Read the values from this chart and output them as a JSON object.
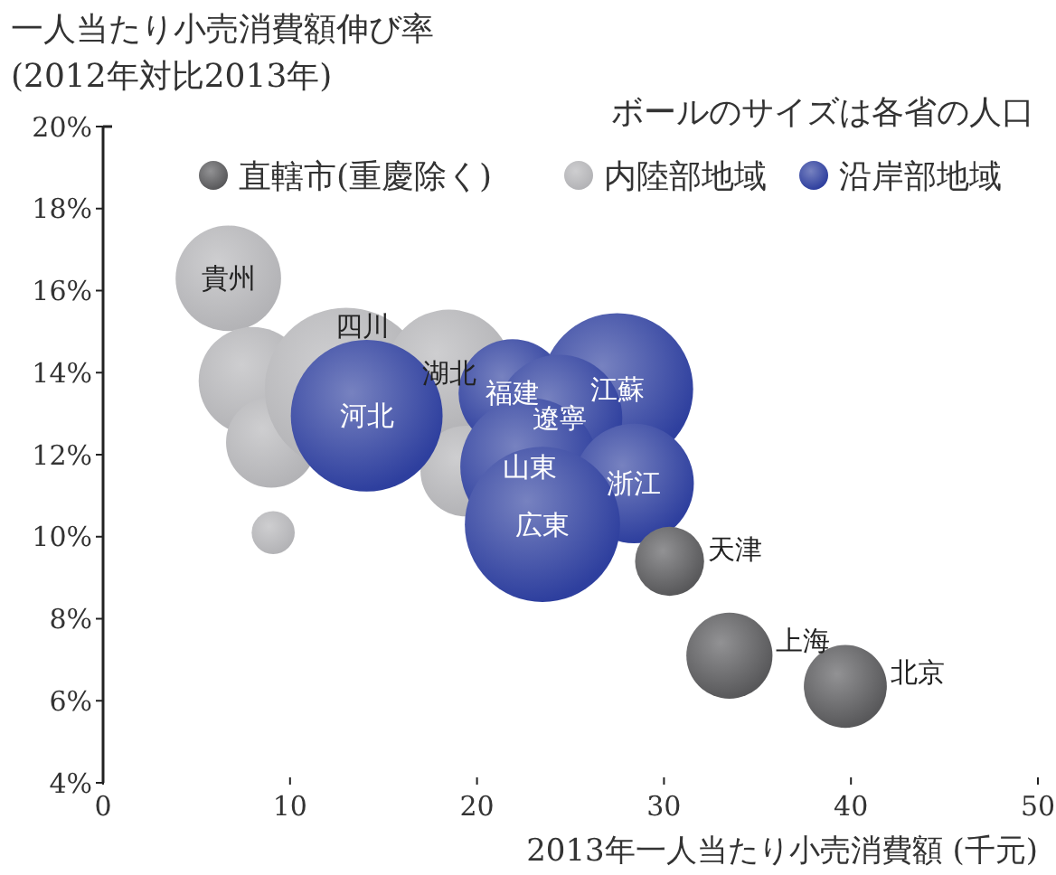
{
  "chart_data": {
    "type": "bubble",
    "ylabel": "一人当たり小売消費額伸び率\n(2012年対比2013年)",
    "xlabel": "2013年一人当たり小売消費額 (千元)",
    "xlim": [
      0,
      50
    ],
    "xticks": [
      0,
      10,
      20,
      30,
      40,
      50
    ],
    "ylim": [
      4,
      20
    ],
    "yticks": [
      {
        "value": 4,
        "label": "4%"
      },
      {
        "value": 6,
        "label": "6%"
      },
      {
        "value": 8,
        "label": "8%"
      },
      {
        "value": 10,
        "label": "10%"
      },
      {
        "value": 12,
        "label": "12%"
      },
      {
        "value": 14,
        "label": "14%"
      },
      {
        "value": 16,
        "label": "16%"
      },
      {
        "value": 18,
        "label": "18%"
      },
      {
        "value": 20,
        "label": "20%"
      }
    ],
    "grid": false,
    "legend": "top right",
    "series": [
      {
        "name": "内陸部地域",
        "color": "#b3b3b6",
        "x": [
          6.7,
          8.0,
          9.0,
          9.1,
          13.0,
          18.5,
          19.4
        ],
        "values": [
          16.3,
          13.8,
          12.3,
          10.1,
          13.6,
          14.0,
          11.6
        ],
        "sizes": [
          0.42,
          0.44,
          0.31,
          0.07,
          1,
          0.6,
          0.31
        ]
      },
      {
        "name": "沿岸部地域",
        "color": "#2e3f9e",
        "x": [
          14.1,
          21.9,
          27.5,
          24.4,
          22.8,
          28.4,
          23.5
        ],
        "values": [
          12.95,
          13.5,
          13.6,
          12.9,
          11.7,
          11.3,
          10.3
        ],
        "sizes": [
          0.87,
          0.44,
          0.87,
          0.6,
          0.72,
          0.54,
          0.91
        ]
      },
      {
        "name": "直轄市(重慶除く)",
        "color": "#58585a",
        "x": [
          30.3,
          33.5,
          39.7
        ],
        "values": [
          9.4,
          7.1,
          6.35
        ],
        "sizes": [
          0.18,
          0.28,
          0.26
        ]
      }
    ],
    "annotations": [
      "ボールのサイズは各省の人口",
      {
        "text": "貴州",
        "x": 6.7,
        "y": 16.3
      },
      {
        "text": "四川",
        "x": 13.0,
        "y": 13.6
      },
      {
        "text": "湖北",
        "x": 18.5,
        "y": 14.0
      },
      {
        "text": "河北",
        "x": 14.1,
        "y": 12.95
      },
      {
        "text": "福建",
        "x": 21.9,
        "y": 13.5
      },
      {
        "text": "江蘇",
        "x": 27.5,
        "y": 13.6
      },
      {
        "text": "遼寧",
        "x": 24.4,
        "y": 12.9
      },
      {
        "text": "山東",
        "x": 22.8,
        "y": 11.7
      },
      {
        "text": "浙江",
        "x": 28.4,
        "y": 11.3
      },
      {
        "text": "広東",
        "x": 23.5,
        "y": 10.3
      },
      {
        "text": "天津",
        "x": 30.3,
        "y": 9.4
      },
      {
        "text": "上海",
        "x": 33.5,
        "y": 7.1
      },
      {
        "text": "北京",
        "x": 39.7,
        "y": 6.35
      }
    ]
  }
}
